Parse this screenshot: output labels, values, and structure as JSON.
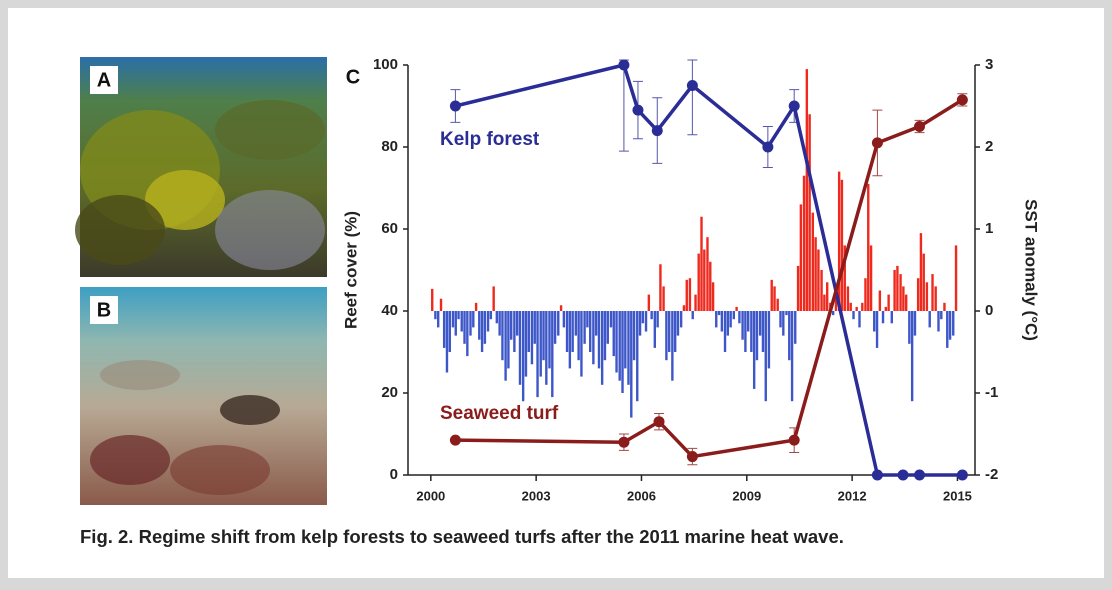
{
  "panels": {
    "a_label": "A",
    "b_label": "B"
  },
  "chart_data": {
    "type": "line",
    "panel_label": "C",
    "xlim": [
      1999.35,
      2015.5
    ],
    "xticks": [
      2000,
      2003,
      2006,
      2009,
      2012,
      2015
    ],
    "ylabel": "Reef cover (%)",
    "ylim": [
      0,
      100
    ],
    "yticks": [
      0,
      20,
      40,
      60,
      80,
      100
    ],
    "y2label": "SST anomaly (°C)",
    "y2lim": [
      -2,
      3
    ],
    "y2ticks": [
      -2,
      -1,
      0,
      1,
      2,
      3
    ],
    "series": [
      {
        "name": "Kelp forest",
        "color": "#2b2d96",
        "x": [
          2000.7,
          2005.5,
          2005.9,
          2006.45,
          2007.45,
          2009.6,
          2010.35,
          2012.72,
          2013.45,
          2013.92,
          2015.14
        ],
        "values": [
          90,
          100,
          89,
          84,
          95,
          80,
          90,
          0,
          0,
          0,
          0
        ],
        "errors": [
          4,
          21,
          7,
          8,
          12,
          5,
          4,
          null,
          null,
          null,
          null
        ]
      },
      {
        "name": "Seaweed turf",
        "color": "#8b1c1c",
        "x": [
          2000.7,
          2005.5,
          2006.5,
          2007.45,
          2010.35,
          2012.72,
          2013.92,
          2015.14
        ],
        "values": [
          8.5,
          8,
          13,
          4.5,
          8.5,
          81,
          85,
          91.5
        ],
        "errors": [
          null,
          2,
          2,
          2,
          3,
          8,
          1.5,
          1.5
        ]
      },
      {
        "type": "bar",
        "axis": "y2",
        "color_positive": "#ee2a1e",
        "color_negative": "#3d56c8",
        "x": [
          2000.04,
          2000.13,
          2000.21,
          2000.29,
          2000.38,
          2000.46,
          2000.54,
          2000.63,
          2000.71,
          2000.79,
          2000.88,
          2000.96,
          2001.04,
          2001.13,
          2001.21,
          2001.29,
          2001.38,
          2001.46,
          2001.54,
          2001.63,
          2001.71,
          2001.79,
          2001.88,
          2001.96,
          2002.04,
          2002.13,
          2002.21,
          2002.29,
          2002.38,
          2002.46,
          2002.54,
          2002.63,
          2002.71,
          2002.79,
          2002.88,
          2002.96,
          2003.04,
          2003.13,
          2003.21,
          2003.29,
          2003.38,
          2003.46,
          2003.54,
          2003.63,
          2003.71,
          2003.79,
          2003.88,
          2003.96,
          2004.04,
          2004.13,
          2004.21,
          2004.29,
          2004.38,
          2004.46,
          2004.54,
          2004.63,
          2004.71,
          2004.79,
          2004.88,
          2004.96,
          2005.04,
          2005.13,
          2005.21,
          2005.29,
          2005.38,
          2005.46,
          2005.54,
          2005.63,
          2005.71,
          2005.79,
          2005.88,
          2005.96,
          2006.04,
          2006.13,
          2006.21,
          2006.29,
          2006.38,
          2006.46,
          2006.54,
          2006.63,
          2006.71,
          2006.79,
          2006.88,
          2006.96,
          2007.04,
          2007.13,
          2007.21,
          2007.29,
          2007.38,
          2007.46,
          2007.54,
          2007.63,
          2007.71,
          2007.79,
          2007.88,
          2007.96,
          2008.04,
          2008.13,
          2008.21,
          2008.29,
          2008.38,
          2008.46,
          2008.54,
          2008.63,
          2008.71,
          2008.79,
          2008.88,
          2008.96,
          2009.04,
          2009.13,
          2009.21,
          2009.29,
          2009.38,
          2009.46,
          2009.54,
          2009.63,
          2009.71,
          2009.79,
          2009.88,
          2009.96,
          2010.04,
          2010.13,
          2010.21,
          2010.29,
          2010.38,
          2010.46,
          2010.54,
          2010.63,
          2010.71,
          2010.79,
          2010.88,
          2010.96,
          2011.04,
          2011.13,
          2011.21,
          2011.29,
          2011.38,
          2011.46,
          2011.54,
          2011.63,
          2011.71,
          2011.79,
          2011.88,
          2011.96,
          2012.04,
          2012.13,
          2012.21,
          2012.29,
          2012.38,
          2012.46,
          2012.54,
          2012.63,
          2012.71,
          2012.79,
          2012.88,
          2012.96,
          2013.04,
          2013.13,
          2013.21,
          2013.29,
          2013.38,
          2013.46,
          2013.54,
          2013.63,
          2013.71,
          2013.79,
          2013.88,
          2013.96,
          2014.04,
          2014.13,
          2014.21,
          2014.29,
          2014.38,
          2014.46,
          2014.54,
          2014.63,
          2014.71,
          2014.79,
          2014.88,
          2014.96
        ],
        "values": [
          0.27,
          -0.1,
          -0.2,
          0.15,
          -0.45,
          -0.75,
          -0.5,
          -0.2,
          -0.3,
          -0.1,
          -0.25,
          -0.4,
          -0.55,
          -0.3,
          -0.2,
          0.1,
          -0.35,
          -0.5,
          -0.4,
          -0.25,
          -0.1,
          0.3,
          -0.15,
          -0.3,
          -0.6,
          -0.85,
          -0.7,
          -0.35,
          -0.5,
          -0.3,
          -0.9,
          -1.1,
          -0.8,
          -0.5,
          -0.65,
          -0.4,
          -1.05,
          -0.8,
          -0.6,
          -0.9,
          -0.7,
          -1.05,
          -0.4,
          -0.3,
          0.07,
          -0.2,
          -0.5,
          -0.7,
          -0.5,
          -0.3,
          -0.6,
          -0.8,
          -0.4,
          -0.2,
          -0.5,
          -0.65,
          -0.3,
          -0.7,
          -0.9,
          -0.6,
          -0.4,
          -0.2,
          -0.55,
          -0.75,
          -0.85,
          -1.0,
          -0.7,
          -0.9,
          -1.3,
          -0.6,
          -1.1,
          -0.3,
          -0.15,
          -0.25,
          0.2,
          -0.1,
          -0.45,
          -0.2,
          0.57,
          0.3,
          -0.6,
          -0.5,
          -0.85,
          -0.5,
          -0.3,
          -0.2,
          0.07,
          0.38,
          0.4,
          -0.1,
          0.2,
          0.7,
          1.15,
          0.75,
          0.9,
          0.6,
          0.35,
          -0.2,
          -0.05,
          -0.25,
          -0.5,
          -0.3,
          -0.2,
          -0.1,
          0.05,
          -0.15,
          -0.35,
          -0.5,
          -0.25,
          -0.5,
          -0.95,
          -0.6,
          -0.3,
          -0.5,
          -1.1,
          -0.7,
          0.38,
          0.3,
          0.15,
          -0.2,
          -0.3,
          -0.05,
          -0.6,
          -1.1,
          -0.4,
          0.55,
          1.3,
          1.65,
          2.95,
          2.4,
          1.2,
          0.9,
          0.75,
          0.5,
          0.2,
          0.35,
          0.1,
          -0.05,
          0.2,
          1.7,
          1.6,
          0.8,
          0.3,
          0.1,
          -0.1,
          0.05,
          -0.2,
          0.1,
          0.4,
          1.55,
          0.8,
          -0.25,
          -0.45,
          0.25,
          -0.15,
          0.05,
          0.2,
          -0.15,
          0.5,
          0.55,
          0.45,
          0.3,
          0.2,
          -0.4,
          -1.1,
          -0.3,
          0.4,
          0.95,
          0.7,
          0.35,
          -0.2,
          0.45,
          0.3,
          -0.25,
          -0.1,
          0.1,
          -0.45,
          -0.35,
          -0.3,
          0.8
        ]
      }
    ]
  },
  "caption": "Fig. 2. Regime shift from kelp forests to seaweed turfs after the 2011 marine heat wave."
}
